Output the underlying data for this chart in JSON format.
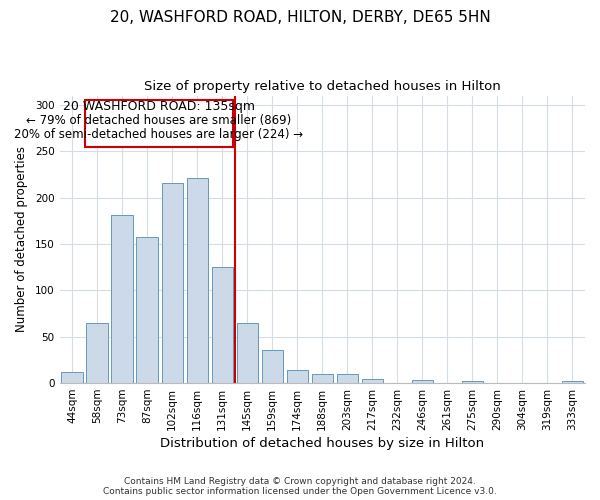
{
  "title": "20, WASHFORD ROAD, HILTON, DERBY, DE65 5HN",
  "subtitle": "Size of property relative to detached houses in Hilton",
  "xlabel": "Distribution of detached houses by size in Hilton",
  "ylabel": "Number of detached properties",
  "bar_labels": [
    "44sqm",
    "58sqm",
    "73sqm",
    "87sqm",
    "102sqm",
    "116sqm",
    "131sqm",
    "145sqm",
    "159sqm",
    "174sqm",
    "188sqm",
    "203sqm",
    "217sqm",
    "232sqm",
    "246sqm",
    "261sqm",
    "275sqm",
    "290sqm",
    "304sqm",
    "319sqm",
    "333sqm"
  ],
  "bar_values": [
    12,
    65,
    181,
    157,
    216,
    221,
    125,
    65,
    36,
    14,
    10,
    10,
    4,
    0,
    3,
    0,
    2,
    0,
    0,
    0,
    2
  ],
  "bar_color": "#ccd9e8",
  "bar_edge_color": "#6699bb",
  "vline_color": "#cc0000",
  "vline_x": 6.5,
  "ylim": [
    0,
    310
  ],
  "yticks": [
    0,
    50,
    100,
    150,
    200,
    250,
    300
  ],
  "annotation_title": "20 WASHFORD ROAD: 135sqm",
  "annotation_line1": "← 79% of detached houses are smaller (869)",
  "annotation_line2": "20% of semi-detached houses are larger (224) →",
  "annotation_box_color": "#ffffff",
  "annotation_box_edge": "#cc0000",
  "footer1": "Contains HM Land Registry data © Crown copyright and database right 2024.",
  "footer2": "Contains public sector information licensed under the Open Government Licence v3.0.",
  "background_color": "#ffffff",
  "grid_color": "#d4dde6",
  "title_fontsize": 11,
  "subtitle_fontsize": 9.5,
  "xlabel_fontsize": 9.5,
  "ylabel_fontsize": 8.5,
  "tick_fontsize": 7.5,
  "annotation_title_fontsize": 9,
  "annotation_text_fontsize": 8.5,
  "footer_fontsize": 6.5
}
